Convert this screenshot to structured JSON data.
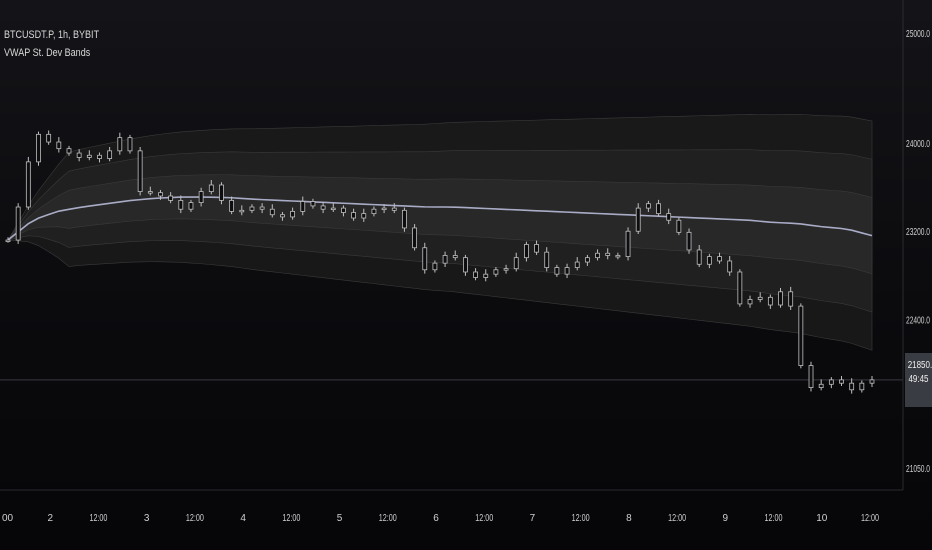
{
  "legend": {
    "symbol": "BTCUSDT.P, 1h, BYBIT",
    "indicator": "VWAP St. Dev Bands"
  },
  "price_badge": {
    "price": "21850.0",
    "countdown": "49:45"
  },
  "colors": {
    "background": "#0b0b0e",
    "candles": "#bfbfbf",
    "vwap": "#a9acc6",
    "bands": "#3a3a3a",
    "price_line": "#3a3a42",
    "axis_text": "#cfcfcf"
  },
  "chart_data": {
    "type": "line",
    "title": "",
    "x_tick_labels": [
      "00",
      "2",
      "12:00",
      "3",
      "12:00",
      "4",
      "12:00",
      "5",
      "12:00",
      "6",
      "12:00",
      "7",
      "12:00",
      "8",
      "12:00",
      "9",
      "12:00",
      "10",
      "12:00"
    ],
    "y_tick_labels": [
      "25000.0",
      "24000.0",
      "23200.0",
      "22400.0",
      "21050.0"
    ],
    "ylim": [
      20850,
      25300
    ],
    "current_price": 21850,
    "series": [
      {
        "kind": "price",
        "values": [
          23120,
          23420,
          23830,
          24080,
          24010,
          23950,
          23910,
          23870,
          23890,
          23860,
          23930,
          24050,
          23930,
          23560,
          23550,
          23520,
          23480,
          23400,
          23460,
          23560,
          23620,
          23480,
          23380,
          23390,
          23420,
          23400,
          23350,
          23330,
          23380,
          23470,
          23430,
          23400,
          23410,
          23370,
          23320,
          23360,
          23400,
          23410,
          23390,
          23230,
          23050,
          22850,
          22910,
          22980,
          22960,
          22830,
          22780,
          22810,
          22850,
          22860,
          22960,
          23080,
          23010,
          22870,
          22810,
          22870,
          22920,
          22960,
          23000,
          22980,
          22970,
          23200,
          23410,
          23450,
          23360,
          23300,
          23190,
          23030,
          22900,
          22970,
          22930,
          22830,
          22540,
          22580,
          22600,
          22530,
          22650,
          22520,
          21980,
          21780,
          21810,
          21850,
          21820,
          21760,
          21820,
          21850
        ],
        "name": ""
      },
      {
        "kind": "vwap",
        "values": [
          23120,
          23300,
          23380,
          23420,
          23450,
          23480,
          23500,
          23510,
          23510,
          23505,
          23490,
          23480,
          23470,
          23460,
          23450,
          23440,
          23430,
          23420,
          23420,
          23410,
          23400,
          23390,
          23380,
          23370,
          23360,
          23350,
          23340,
          23330,
          23320,
          23310,
          23300,
          23280,
          23270,
          23240,
          23220,
          23160
        ],
        "name": ""
      }
    ]
  }
}
